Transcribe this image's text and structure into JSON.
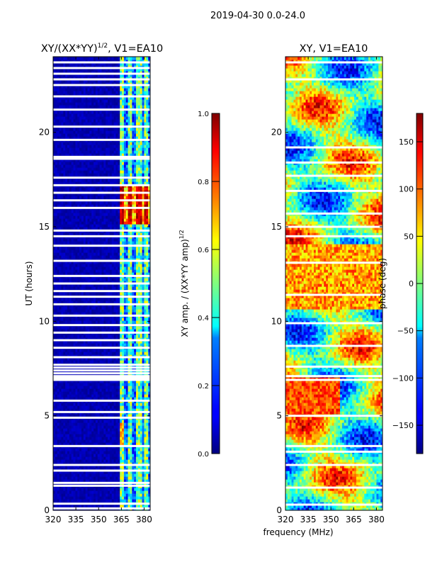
{
  "suptitle": "2019-04-30 0.0-24.0",
  "shared_xlabel": "frequency (MHz)",
  "chart_data": [
    {
      "type": "heatmap",
      "title_base": "XY/(XX*YY)",
      "title_sup": "1/2",
      "title_suffix": ", V1=EA10",
      "ylabel": "UT (hours)",
      "xlim": [
        320,
        384
      ],
      "ylim": [
        0,
        24
      ],
      "xticks": [
        "320",
        "335",
        "350",
        "365",
        "380"
      ],
      "xtick_values": [
        320,
        335,
        350,
        365,
        380
      ],
      "yticks": [
        "0",
        "5",
        "10",
        "15",
        "20"
      ],
      "ytick_values": [
        0,
        5,
        10,
        15,
        20
      ],
      "colorbar": {
        "label_base": "XY amp. / (XX*YY amp)",
        "label_sup": "1/2",
        "range": [
          0.0,
          1.0
        ],
        "ticks": [
          "0.0",
          "0.2",
          "0.4",
          "0.6",
          "0.8",
          "1.0"
        ],
        "tick_values": [
          0.0,
          0.2,
          0.4,
          0.6,
          0.8,
          1.0
        ],
        "colormap": "jet"
      },
      "flagged_ut_hours": [
        0.1,
        0.35,
        1.3,
        1.45,
        2.1,
        2.4,
        3.4,
        4.9,
        5.2,
        5.8,
        6.9,
        7.0,
        7.1,
        7.25,
        7.4,
        7.55,
        7.7,
        8.1,
        8.6,
        9.0,
        9.4,
        9.8,
        10.3,
        10.9,
        11.3,
        11.6,
        12.0,
        12.4,
        13.2,
        14.0,
        14.5,
        14.8,
        16.0,
        16.4,
        16.8,
        17.2,
        17.6,
        18.6,
        18.7,
        19.6,
        20.3,
        21.2,
        21.9,
        22.5,
        22.8,
        23.1,
        23.4,
        23.7
      ],
      "notes": "Low band 320-363 MHz near 0; bright columns near 364, 370, 376, 381 MHz; high values (~0.8-1.0) around 15-17 h"
    },
    {
      "type": "heatmap",
      "title": "XY, V1=EA10",
      "xlim": [
        320,
        384
      ],
      "ylim": [
        0,
        24
      ],
      "xticks": [
        "320",
        "335",
        "350",
        "365",
        "380"
      ],
      "xtick_values": [
        320,
        335,
        350,
        365,
        380
      ],
      "yticks": [
        "0",
        "5",
        "10",
        "15",
        "20"
      ],
      "ytick_values": [
        0,
        5,
        10,
        15,
        20
      ],
      "colorbar": {
        "label": "phase (deg)",
        "range": [
          -180,
          180
        ],
        "ticks": [
          "−150",
          "−100",
          "−50",
          "0",
          "50",
          "100",
          "150"
        ],
        "tick_values": [
          -150,
          -100,
          -50,
          0,
          50,
          100,
          150
        ],
        "colormap": "jet"
      },
      "flagged_ut_hours": [
        0.3,
        1.2,
        2.4,
        3.1,
        3.4,
        5.0,
        6.9,
        7.1,
        7.6,
        8.7,
        9.9,
        11.4,
        13.1,
        14.5,
        15.0,
        15.7,
        16.9,
        17.7,
        18.4,
        19.2,
        22.8,
        23.7
      ]
    }
  ]
}
